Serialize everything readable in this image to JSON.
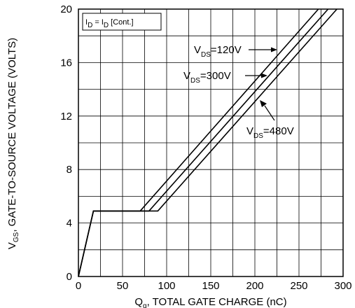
{
  "chart_data": {
    "type": "line",
    "title": "",
    "xlabel": "Q",
    "xlabel_sub": "g",
    "xlabel_rest": ", TOTAL GATE CHARGE (nC)",
    "ylabel": "V",
    "ylabel_sub": "GS",
    "ylabel_rest": ", GATE-TO-SOURCE VOLTAGE (VOLTS)",
    "xlim": [
      0,
      300
    ],
    "ylim": [
      0,
      20
    ],
    "xticks": [
      0,
      50,
      100,
      150,
      200,
      250,
      300
    ],
    "yticks": [
      0,
      4,
      8,
      12,
      16,
      20
    ],
    "grid": true,
    "condition_box": {
      "p1": "I",
      "s1": "D",
      "p2": " = I",
      "s2": "D",
      "p3": " [Cont.]"
    },
    "series": [
      {
        "name": "VDS=120V",
        "label_main": "V",
        "label_sub": "DS",
        "label_rest": "=120V",
        "x": [
          0,
          17,
          70,
          272
        ],
        "y": [
          0,
          4.9,
          4.9,
          20
        ]
      },
      {
        "name": "VDS=300V",
        "label_main": "V",
        "label_sub": "DS",
        "label_rest": "=300V",
        "x": [
          0,
          17,
          80,
          283
        ],
        "y": [
          0,
          4.9,
          4.9,
          20
        ]
      },
      {
        "name": "VDS=480V",
        "label_main": "V",
        "label_sub": "DS",
        "label_rest": "=480V",
        "x": [
          0,
          17,
          90,
          293
        ],
        "y": [
          0,
          4.9,
          4.9,
          20
        ]
      }
    ]
  }
}
